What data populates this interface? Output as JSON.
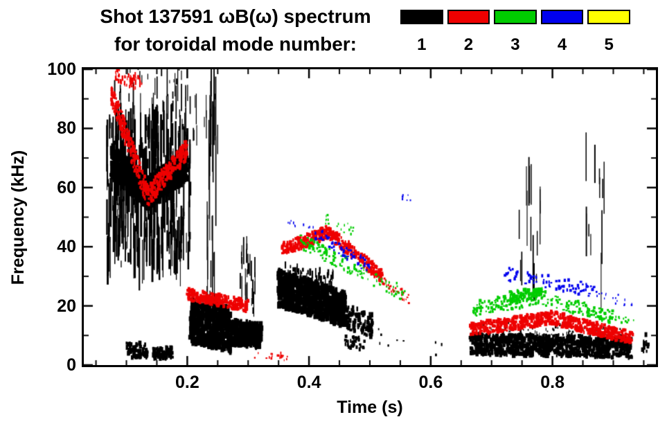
{
  "header": {
    "title_line1": "Shot 137591 ωB(ω) spectrum",
    "title_line2": "for toroidal mode number:"
  },
  "legend": {
    "modes": [
      {
        "label": "1",
        "color": "#000000"
      },
      {
        "label": "2",
        "color": "#ee0000"
      },
      {
        "label": "3",
        "color": "#00cc00"
      },
      {
        "label": "4",
        "color": "#0000ee"
      },
      {
        "label": "5",
        "color": "#ffff00"
      }
    ]
  },
  "chart_data": {
    "type": "scatter",
    "title": "Shot 137591 ωB(ω) spectrum for toroidal mode number",
    "xlabel": "Time (s)",
    "ylabel": "Frequency (kHz)",
    "xlim": [
      0.03,
      0.97
    ],
    "ylim": [
      0,
      100
    ],
    "xticks": [
      0.2,
      0.4,
      0.6,
      0.8
    ],
    "xtick_labels": [
      "0.2",
      "0.4",
      "0.6",
      "0.8"
    ],
    "xminor": [
      0.05,
      0.1,
      0.15,
      0.25,
      0.3,
      0.35,
      0.45,
      0.5,
      0.55,
      0.65,
      0.7,
      0.75,
      0.85,
      0.9,
      0.95
    ],
    "yticks": [
      0,
      20,
      40,
      60,
      80,
      100
    ],
    "ytick_labels": [
      "0",
      "20",
      "40",
      "60",
      "80",
      "100"
    ],
    "yminor": [
      10,
      30,
      50,
      70,
      90
    ],
    "grid": false,
    "legend_position": "top-right",
    "series": [
      {
        "name": "n=1",
        "color": "#000000",
        "bands": [
          {
            "t": [
              0.068,
              0.205
            ],
            "f": [
              58,
              58
            ],
            "spread": 24,
            "n": 350,
            "w": [
              1,
              3
            ],
            "h": [
              8,
              80
            ]
          },
          {
            "t": [
              0.075,
              0.135
            ],
            "f": [
              69,
              58
            ],
            "spread": 5,
            "n": 450,
            "w": [
              2,
              6
            ],
            "h": [
              5,
              14
            ]
          },
          {
            "t": [
              0.135,
              0.2
            ],
            "f": [
              58,
              68
            ],
            "spread": 5,
            "n": 450,
            "w": [
              2,
              6
            ],
            "h": [
              5,
              14
            ]
          },
          {
            "t": [
              0.08,
              0.26
            ],
            "f": [
              88,
              86
            ],
            "spread": 10,
            "n": 50,
            "w": [
              1,
              2
            ],
            "h": [
              6,
              50
            ]
          },
          {
            "t": [
              0.1,
              0.135
            ],
            "f": [
              5,
              5
            ],
            "spread": 2.5,
            "n": 70,
            "w": [
              2,
              5
            ],
            "h": [
              4,
              8
            ]
          },
          {
            "t": [
              0.143,
              0.175
            ],
            "f": [
              4,
              4
            ],
            "spread": 2,
            "n": 90,
            "w": [
              2,
              5
            ],
            "h": [
              4,
              8
            ]
          },
          {
            "t": [
              0.205,
              0.272
            ],
            "f": [
              15,
              12
            ],
            "spread": 7.5,
            "n": 550,
            "w": [
              2,
              6
            ],
            "h": [
              5,
              10
            ]
          },
          {
            "t": [
              0.272,
              0.322
            ],
            "f": [
              11,
              10
            ],
            "spread": 4,
            "n": 300,
            "w": [
              2,
              6
            ],
            "h": [
              5,
              10
            ]
          },
          {
            "t": [
              0.232,
              0.247
            ],
            "f": [
              55,
              55
            ],
            "spread": 38,
            "n": 22,
            "w": [
              1,
              2
            ],
            "h": [
              30,
              150
            ]
          },
          {
            "t": [
              0.287,
              0.312
            ],
            "f": [
              30,
              28
            ],
            "spread": 11,
            "n": 28,
            "w": [
              1,
              2
            ],
            "h": [
              8,
              40
            ]
          },
          {
            "t": [
              0.35,
              0.46
            ],
            "f": [
              26,
              19
            ],
            "spread": 6,
            "n": 650,
            "w": [
              3,
              7
            ],
            "h": [
              5,
              10
            ]
          },
          {
            "t": [
              0.36,
              0.44
            ],
            "f": [
              32,
              28
            ],
            "spread": 3,
            "n": 60,
            "w": [
              1,
              3
            ],
            "h": [
              4,
              14
            ]
          },
          {
            "t": [
              0.44,
              0.505
            ],
            "f": [
              18,
              13
            ],
            "spread": 4,
            "n": 140,
            "w": [
              2,
              5
            ],
            "h": [
              4,
              8
            ]
          },
          {
            "t": [
              0.458,
              0.492
            ],
            "f": [
              8,
              7
            ],
            "spread": 2,
            "n": 35,
            "w": [
              2,
              4
            ],
            "h": [
              3,
              6
            ]
          },
          {
            "t": [
              0.665,
              0.93
            ],
            "f": [
              7,
              6
            ],
            "spread": 3.5,
            "n": 800,
            "w": [
              2,
              6
            ],
            "h": [
              4,
              8
            ]
          },
          {
            "t": [
              0.68,
              0.92
            ],
            "f": [
              12,
              10
            ],
            "spread": 3,
            "n": 110,
            "w": [
              1,
              3
            ],
            "h": [
              2,
              5
            ]
          },
          {
            "t": [
              0.74,
              0.78
            ],
            "f": [
              45,
              45
            ],
            "spread": 20,
            "n": 16,
            "w": [
              1,
              2
            ],
            "h": [
              10,
              80
            ]
          },
          {
            "t": [
              0.855,
              0.885
            ],
            "f": [
              50,
              48
            ],
            "spread": 24,
            "n": 12,
            "w": [
              1,
              2
            ],
            "h": [
              10,
              90
            ]
          },
          {
            "t": [
              0.945,
              0.958
            ],
            "f": [
              7,
              6
            ],
            "spread": 4,
            "n": 12,
            "w": [
              2,
              4
            ],
            "h": [
              4,
              10
            ]
          },
          {
            "t": [
              0.5,
              0.62
            ],
            "f": [
              9,
              7
            ],
            "spread": 4,
            "n": 10,
            "w": [
              1,
              3
            ],
            "h": [
              2,
              5
            ]
          },
          {
            "t": [
              0.09,
              0.2
            ],
            "f": [
              100,
              98
            ],
            "spread": 3,
            "n": 15,
            "w": [
              1,
              2
            ],
            "h": [
              4,
              14
            ]
          }
        ]
      },
      {
        "name": "n=2",
        "color": "#ee0000",
        "bands": [
          {
            "t": [
              0.075,
              0.135
            ],
            "f": [
              92,
              57
            ],
            "spread": 4,
            "n": 240,
            "w": [
              2,
              4
            ],
            "h": [
              3,
              6
            ]
          },
          {
            "t": [
              0.135,
              0.2
            ],
            "f": [
              57,
              73
            ],
            "spread": 3.5,
            "n": 240,
            "w": [
              2,
              4
            ],
            "h": [
              3,
              6
            ]
          },
          {
            "t": [
              0.082,
              0.125
            ],
            "f": [
              98,
              95
            ],
            "spread": 2.5,
            "n": 50,
            "w": [
              1,
              3
            ],
            "h": [
              3,
              8
            ]
          },
          {
            "t": [
              0.2,
              0.3
            ],
            "f": [
              24,
              20
            ],
            "spread": 2,
            "n": 260,
            "w": [
              2,
              5
            ],
            "h": [
              3,
              6
            ]
          },
          {
            "t": [
              0.355,
              0.432
            ],
            "f": [
              39,
              45
            ],
            "spread": 2.2,
            "n": 180,
            "w": [
              2,
              5
            ],
            "h": [
              3,
              6
            ]
          },
          {
            "t": [
              0.432,
              0.52
            ],
            "f": [
              45,
              30
            ],
            "spread": 2.2,
            "n": 180,
            "w": [
              2,
              5
            ],
            "h": [
              3,
              6
            ]
          },
          {
            "t": [
              0.52,
              0.565
            ],
            "f": [
              29,
              22
            ],
            "spread": 1.8,
            "n": 35,
            "w": [
              1,
              3
            ],
            "h": [
              2,
              4
            ]
          },
          {
            "t": [
              0.665,
              0.8
            ],
            "f": [
              12,
              16
            ],
            "spread": 2.2,
            "n": 280,
            "w": [
              2,
              5
            ],
            "h": [
              3,
              6
            ]
          },
          {
            "t": [
              0.8,
              0.932
            ],
            "f": [
              16,
              9
            ],
            "spread": 2.2,
            "n": 280,
            "w": [
              2,
              5
            ],
            "h": [
              3,
              6
            ]
          },
          {
            "t": [
              0.3,
              0.365
            ],
            "f": [
              4,
              3
            ],
            "spread": 1.5,
            "n": 20,
            "w": [
              1,
              3
            ],
            "h": [
              2,
              4
            ]
          }
        ]
      },
      {
        "name": "n=3",
        "color": "#00cc00",
        "bands": [
          {
            "t": [
              0.385,
              0.48
            ],
            "f": [
              42,
              32
            ],
            "spread": 2.5,
            "n": 80,
            "w": [
              2,
              4
            ],
            "h": [
              2,
              5
            ]
          },
          {
            "t": [
              0.48,
              0.565
            ],
            "f": [
              32,
              23
            ],
            "spread": 2.5,
            "n": 50,
            "w": [
              1,
              3
            ],
            "h": [
              2,
              4
            ]
          },
          {
            "t": [
              0.425,
              0.475
            ],
            "f": [
              50,
              45
            ],
            "spread": 2,
            "n": 18,
            "w": [
              1,
              3
            ],
            "h": [
              2,
              4
            ]
          },
          {
            "t": [
              0.67,
              0.78
            ],
            "f": [
              19,
              23
            ],
            "spread": 2.5,
            "n": 120,
            "w": [
              2,
              4
            ],
            "h": [
              2,
              5
            ]
          },
          {
            "t": [
              0.73,
              0.785
            ],
            "f": [
              23,
              24
            ],
            "spread": 2,
            "n": 70,
            "w": [
              2,
              5
            ],
            "h": [
              3,
              6
            ]
          },
          {
            "t": [
              0.78,
              0.9
            ],
            "f": [
              23,
              16
            ],
            "spread": 2.5,
            "n": 100,
            "w": [
              2,
              4
            ],
            "h": [
              2,
              5
            ]
          },
          {
            "t": [
              0.9,
              0.935
            ],
            "f": [
              16,
              14
            ],
            "spread": 1.5,
            "n": 12,
            "w": [
              1,
              3
            ],
            "h": [
              2,
              4
            ]
          }
        ]
      },
      {
        "name": "n=4",
        "color": "#0000ee",
        "bands": [
          {
            "t": [
              0.41,
              0.5
            ],
            "f": [
              45,
              33
            ],
            "spread": 2.2,
            "n": 55,
            "w": [
              2,
              4
            ],
            "h": [
              2,
              5
            ]
          },
          {
            "t": [
              0.553,
              0.568
            ],
            "f": [
              57,
              56
            ],
            "spread": 1.2,
            "n": 6,
            "w": [
              1,
              3
            ],
            "h": [
              2,
              4
            ]
          },
          {
            "t": [
              0.72,
              0.87
            ],
            "f": [
              31,
              25
            ],
            "spread": 2.2,
            "n": 80,
            "w": [
              2,
              4
            ],
            "h": [
              2,
              5
            ]
          },
          {
            "t": [
              0.87,
              0.935
            ],
            "f": [
              24,
              21
            ],
            "spread": 1.8,
            "n": 18,
            "w": [
              1,
              3
            ],
            "h": [
              2,
              4
            ]
          },
          {
            "t": [
              0.365,
              0.41
            ],
            "f": [
              48,
              45
            ],
            "spread": 1.5,
            "n": 10,
            "w": [
              1,
              2
            ],
            "h": [
              2,
              4
            ]
          }
        ]
      },
      {
        "name": "n=5",
        "color": "#ffff00",
        "bands": []
      }
    ]
  }
}
